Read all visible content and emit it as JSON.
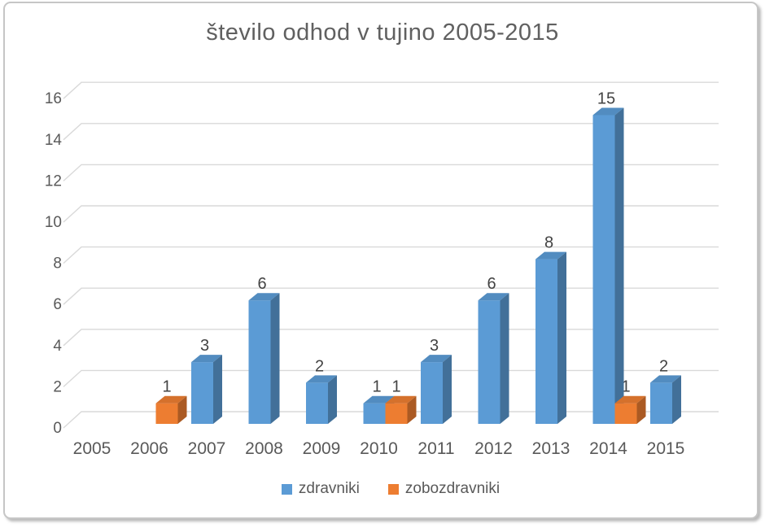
{
  "frame": {
    "border_color": "#c6c6c6"
  },
  "chart_data": {
    "type": "bar",
    "style": "3d-clustered-column",
    "title": "število odhod v tujino 2005-2015",
    "categories": [
      "2005",
      "2006",
      "2007",
      "2008",
      "2009",
      "2010",
      "2011",
      "2012",
      "2013",
      "2014",
      "2015"
    ],
    "series": [
      {
        "name": "zdravniki",
        "color": "#5b9bd5",
        "values": [
          0,
          0,
          3,
          6,
          2,
          1,
          3,
          6,
          8,
          15,
          2
        ]
      },
      {
        "name": "zobozdravniki",
        "color": "#ed7d31",
        "values": [
          0,
          1,
          0,
          0,
          0,
          1,
          0,
          0,
          0,
          1,
          0
        ]
      }
    ],
    "ylim": [
      0,
      16
    ],
    "yticks": [
      0,
      2,
      4,
      6,
      8,
      10,
      12,
      14,
      16
    ],
    "grid": true,
    "data_labels": true,
    "legend_position": "bottom",
    "colors": {
      "text": "#595959",
      "data_label": "#434343",
      "gridline": "#d9d9d9",
      "title": "#606060"
    }
  }
}
